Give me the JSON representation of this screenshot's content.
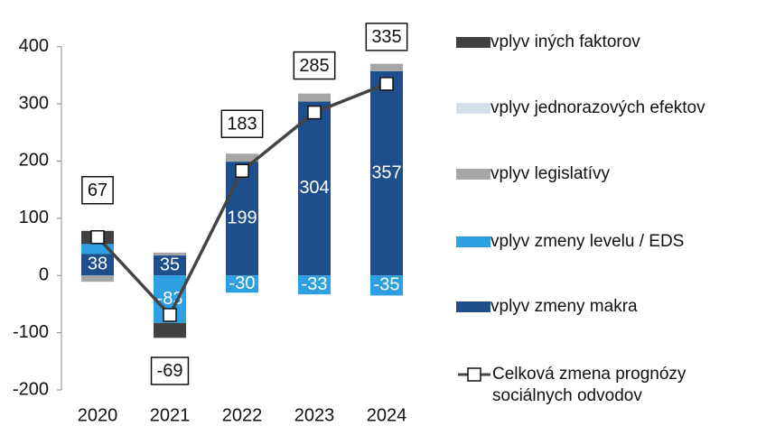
{
  "chart_data": {
    "type": "bar",
    "stacked": true,
    "legend": "right",
    "categories": [
      "2020",
      "2021",
      "2022",
      "2023",
      "2024"
    ],
    "ylim": [
      -200,
      450
    ],
    "yticks": [
      -200,
      -100,
      0,
      100,
      200,
      300,
      400
    ],
    "series": [
      {
        "name": "vplyv zmeny makra",
        "color": "#1f4e8c",
        "values": [
          38,
          35,
          199,
          304,
          357
        ],
        "value_labels": [
          "38",
          "35",
          "199",
          "304",
          "357"
        ]
      },
      {
        "name": "vplyv zmeny levelu / EDS",
        "color": "#2e9fe0",
        "values": [
          17,
          -83,
          -30,
          -33,
          -35
        ],
        "value_labels": [
          null,
          "-83",
          "-30",
          "-33",
          "-35"
        ]
      },
      {
        "name": "vplyv legislatívy",
        "color": "#a6a6a6",
        "values": [
          -11,
          5,
          14,
          14,
          13
        ]
      },
      {
        "name": "vplyv jednorazových efektov",
        "color": "#d6dfea",
        "values": [
          0,
          0,
          0,
          0,
          0
        ]
      },
      {
        "name": "vplyv iných faktorov",
        "color": "#404040",
        "values": [
          23,
          -26,
          0,
          0,
          0
        ]
      }
    ],
    "line": {
      "name": "Celková zmena prognózy sociálnych odvodov",
      "color": "#444444",
      "values": [
        67,
        -69,
        183,
        285,
        335
      ]
    }
  }
}
